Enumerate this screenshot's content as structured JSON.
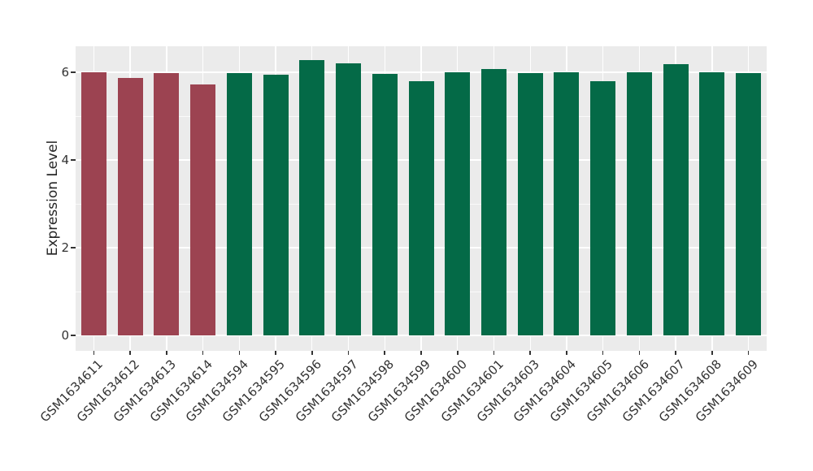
{
  "chart_data": {
    "type": "bar",
    "title": "",
    "xlabel": "",
    "ylabel": "Expression Level",
    "categories": [
      "GSM1634611",
      "GSM1634612",
      "GSM1634613",
      "GSM1634614",
      "GSM1634594",
      "GSM1634595",
      "GSM1634596",
      "GSM1634597",
      "GSM1634598",
      "GSM1634599",
      "GSM1634600",
      "GSM1634601",
      "GSM1634603",
      "GSM1634604",
      "GSM1634605",
      "GSM1634606",
      "GSM1634607",
      "GSM1634608",
      "GSM1634609"
    ],
    "values": [
      6.0,
      5.87,
      5.99,
      5.73,
      5.99,
      5.94,
      6.28,
      6.2,
      5.96,
      5.8,
      6.0,
      6.07,
      5.99,
      6.0,
      5.79,
      6.0,
      6.19,
      6.0,
      5.99
    ],
    "bar_colors": [
      "#9C4351",
      "#9C4351",
      "#9C4351",
      "#9C4351",
      "#046A47",
      "#046A47",
      "#046A47",
      "#046A47",
      "#046A47",
      "#046A47",
      "#046A47",
      "#046A47",
      "#046A47",
      "#046A47",
      "#046A47",
      "#046A47",
      "#046A47",
      "#046A47",
      "#046A47"
    ],
    "yticks": [
      0,
      2,
      4,
      6
    ],
    "yminorticks": [
      1,
      3,
      5
    ],
    "ylim": [
      0,
      6.6
    ],
    "bar_width_fraction": 0.7,
    "grid": true,
    "legend": false,
    "colors": {
      "highlight_group": "#9C4351",
      "normal_group": "#046A47",
      "panel_background": "#EBEBEB",
      "grid_color": "#FFFFFF",
      "tick_color": "#333333",
      "text_color": "#333333"
    }
  }
}
